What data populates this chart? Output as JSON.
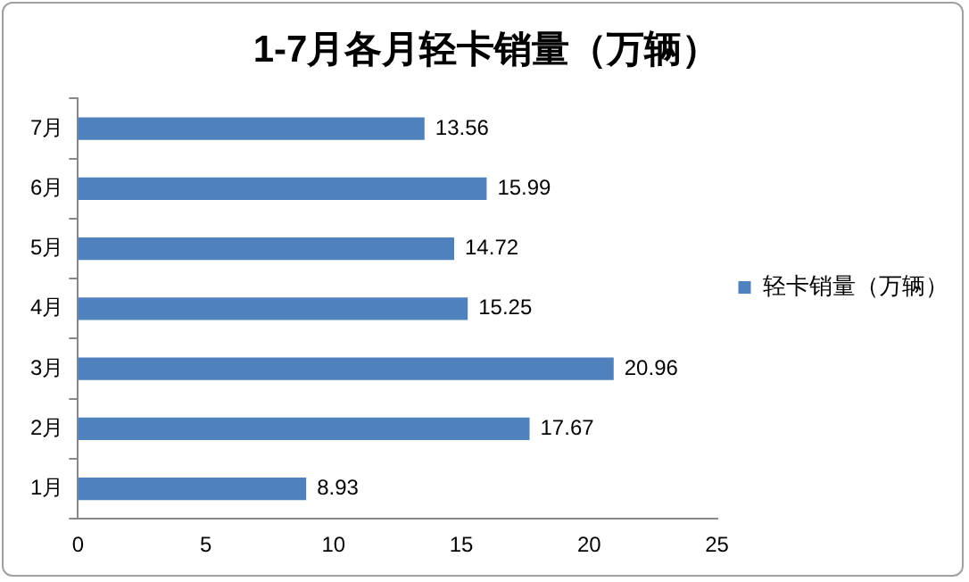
{
  "chart_data": {
    "type": "bar",
    "orientation": "horizontal",
    "title": "1-7月各月轻卡销量（万辆）",
    "categories": [
      "7月",
      "6月",
      "5月",
      "4月",
      "3月",
      "2月",
      "1月"
    ],
    "series": [
      {
        "name": "轻卡销量（万辆）",
        "color": "#4f81bd",
        "values": [
          13.56,
          15.99,
          14.72,
          15.25,
          20.96,
          17.67,
          8.93
        ]
      }
    ],
    "xlim": [
      0,
      25
    ],
    "xticks": [
      0,
      5,
      10,
      15,
      20,
      25
    ],
    "grid": false,
    "legend": "right",
    "data_labels": true
  }
}
